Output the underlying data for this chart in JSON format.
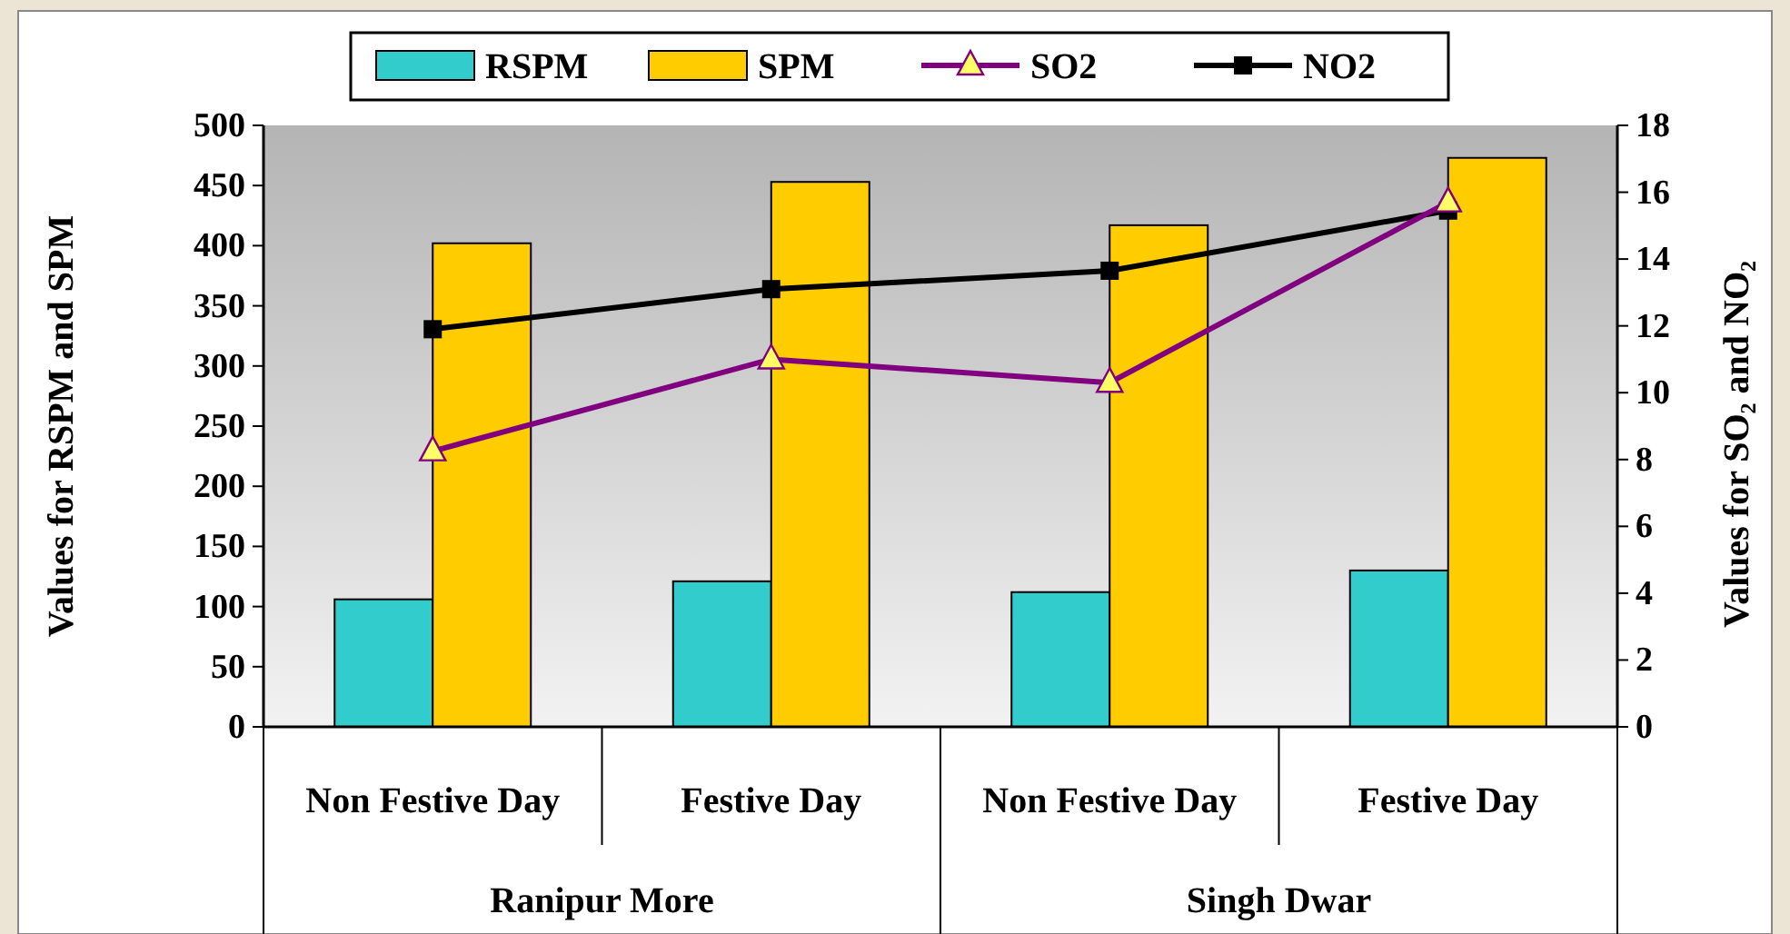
{
  "chart_data": {
    "type": "bar",
    "categories": [
      "Non Festive Day",
      "Festive Day",
      "Non Festive Day",
      "Festive Day"
    ],
    "annotations": [
      "Ranipur More",
      "Singh Dwar"
    ],
    "ylabel": "Values for RSPM and SPM",
    "y2label": "Values for SO₂ and NO₂",
    "ylim": [
      0,
      500
    ],
    "yticks": [
      0,
      50,
      100,
      150,
      200,
      250,
      300,
      350,
      400,
      450,
      500
    ],
    "y2lim": [
      0,
      18
    ],
    "y2ticks": [
      0,
      2,
      4,
      6,
      8,
      10,
      12,
      14,
      16,
      18
    ],
    "legend": "top",
    "grid": false,
    "series": [
      {
        "name": "RSPM",
        "color": "#33cccc",
        "values": [
          106,
          121,
          112,
          130
        ]
      },
      {
        "name": "SPM",
        "color": "#ffcc00",
        "values": [
          402,
          453,
          417,
          473
        ]
      },
      {
        "name": "SO2",
        "type": "line",
        "axis": "y2",
        "color": "#800080",
        "marker": "triangle",
        "values": [
          8.25,
          11.0,
          10.3,
          15.7
        ]
      },
      {
        "name": "NO2",
        "type": "line",
        "axis": "y2",
        "color": "#000000",
        "marker": "square",
        "values": [
          11.9,
          13.1,
          13.65,
          15.45
        ]
      }
    ]
  }
}
